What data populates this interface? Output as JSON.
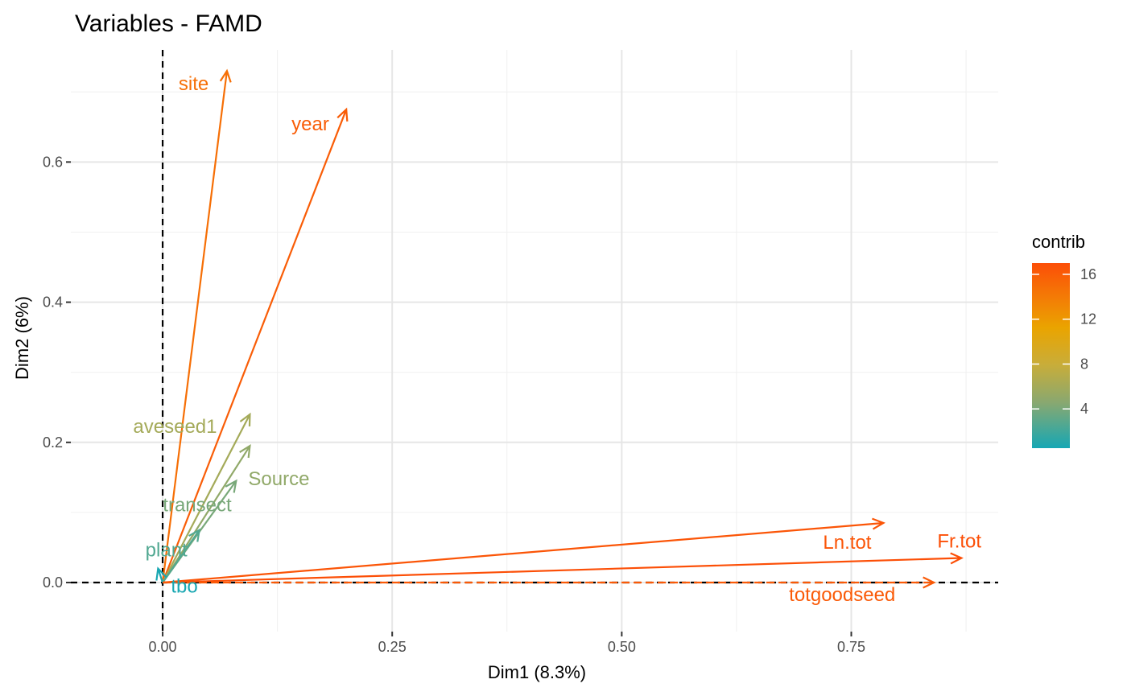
{
  "chart_data": {
    "type": "scatter",
    "subtype": "variable-correlation-arrows",
    "title": "Variables - FAMD",
    "xlabel": "Dim1 (8.3%)",
    "ylabel": "Dim2 (6%)",
    "xlim": [
      -0.1,
      0.91
    ],
    "ylim": [
      -0.07,
      0.76
    ],
    "x_ticks": [
      0.0,
      0.25,
      0.5,
      0.75
    ],
    "x_tick_labels": [
      "0.00",
      "0.25",
      "0.50",
      "0.75"
    ],
    "y_ticks": [
      0.0,
      0.2,
      0.4,
      0.6
    ],
    "y_tick_labels": [
      "0.0",
      "0.2",
      "0.4",
      "0.6"
    ],
    "grid": true,
    "reference_lines": {
      "x": 0,
      "y": 0,
      "style": "dashed"
    },
    "legend": {
      "title": "contrib",
      "placement": "right",
      "range": [
        0.5,
        17
      ],
      "ticks": [
        4,
        8,
        12,
        16
      ],
      "tick_labels": [
        "4",
        "8",
        "12",
        "16"
      ],
      "colors": [
        "#16a7b4",
        "#b8ad4a",
        "#e5ac00",
        "#ef6a00",
        "#fc4e07"
      ]
    },
    "variables": [
      {
        "name": "site",
        "x": 0.07,
        "y": 0.73,
        "contrib": 14.8
      },
      {
        "name": "year",
        "x": 0.2,
        "y": 0.675,
        "contrib": 16.0
      },
      {
        "name": "aveseed1",
        "x": 0.095,
        "y": 0.24,
        "contrib": 6.0
      },
      {
        "name": "Source",
        "x": 0.095,
        "y": 0.195,
        "contrib": 5.0
      },
      {
        "name": "transect",
        "x": 0.08,
        "y": 0.145,
        "contrib": 4.0
      },
      {
        "name": "plant",
        "x": 0.04,
        "y": 0.075,
        "contrib": 2.6
      },
      {
        "name": "tbo",
        "x": -0.005,
        "y": 0.02,
        "contrib": 0.6
      },
      {
        "name": "Ln.tot",
        "x": 0.785,
        "y": 0.085,
        "contrib": 16.5
      },
      {
        "name": "Fr.tot",
        "x": 0.87,
        "y": 0.035,
        "contrib": 16.9
      },
      {
        "name": "totgoodseed",
        "x": 0.84,
        "y": 0.0,
        "contrib": 16.2
      }
    ]
  }
}
